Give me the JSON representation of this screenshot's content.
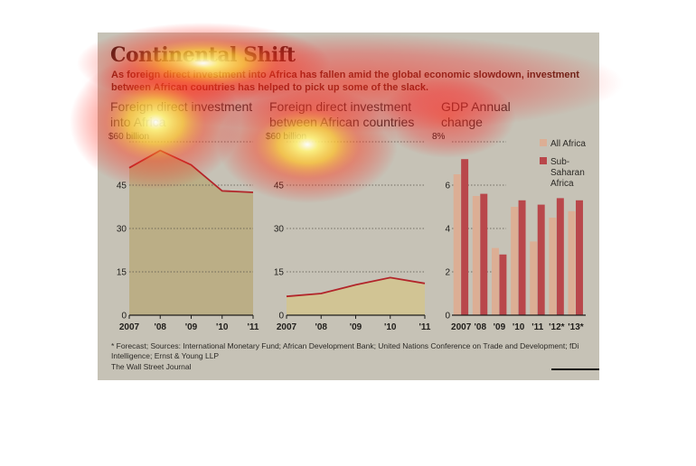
{
  "title": "Continental Shift",
  "subtitle": "As foreign direct investment into Africa has fallen amid the global economic slowdown, investment between African countries has helped to pick up some of the slack.",
  "footnote": "* Forecast; Sources: International Monetary Fund; African Development Bank; United Nations Conference on Trade and Development; fDi Intelligence; Ernst & Young LLP",
  "credit": "The Wall Street Journal",
  "colors": {
    "line": "#b2252a",
    "area_fill": "#b9aa7e",
    "area_fill_2": "#d2c48e",
    "all_africa": "#dcae94",
    "sub_saharan": "#b9474b"
  },
  "chart_data": [
    {
      "type": "area",
      "heading": "Foreign direct investment into Africa",
      "x": [
        "2007",
        "'08",
        "'09",
        "'10",
        "'11"
      ],
      "values": [
        51,
        57,
        52,
        43,
        42.5
      ],
      "y_ticks": [
        "$60 billion",
        "45",
        "30",
        "15",
        "0"
      ],
      "ylim": [
        0,
        60
      ],
      "grid": true
    },
    {
      "type": "area",
      "heading": "Foreign direct investment between African countries",
      "x": [
        "2007",
        "'08",
        "'09",
        "'10",
        "'11"
      ],
      "values": [
        6.5,
        7.5,
        10.5,
        13,
        11
      ],
      "y_ticks": [
        "$60 billion",
        "45",
        "30",
        "15",
        "0"
      ],
      "ylim": [
        0,
        60
      ],
      "grid": true
    },
    {
      "type": "bar",
      "heading": "GDP Annual change",
      "categories": [
        "2007",
        "'08",
        "'09",
        "'10",
        "'11",
        "'12*",
        "'13*"
      ],
      "series": [
        {
          "name": "All Africa",
          "values": [
            6.5,
            5.5,
            3.1,
            5.0,
            3.4,
            4.5,
            4.8
          ]
        },
        {
          "name": "Sub-Saharan Africa",
          "values": [
            7.2,
            5.6,
            2.8,
            5.3,
            5.1,
            5.4,
            5.3
          ]
        }
      ],
      "y_ticks": [
        "8%",
        "6",
        "4",
        "2",
        "0"
      ],
      "ylim": [
        0,
        8
      ],
      "legend": "top-right",
      "grid": true
    }
  ]
}
